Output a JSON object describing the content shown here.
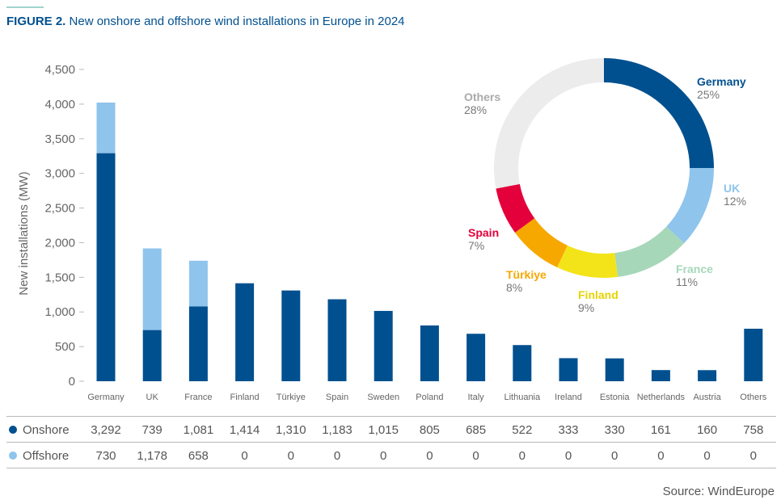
{
  "figure": {
    "label": "FIGURE 2.",
    "title": "New onshore and offshore wind installations in Europe in 2024",
    "source": "Source: WindEurope"
  },
  "chart_data": [
    {
      "type": "bar",
      "stacked": true,
      "categories": [
        "Germany",
        "UK",
        "France",
        "Finland",
        "Türkiye",
        "Spain",
        "Sweden",
        "Poland",
        "Italy",
        "Lithuania",
        "Ireland",
        "Estonia",
        "Netherlands",
        "Austria",
        "Others"
      ],
      "series": [
        {
          "name": "Onshore",
          "color": "#00508f",
          "values": [
            3292,
            739,
            1081,
            1414,
            1310,
            1183,
            1015,
            805,
            685,
            522,
            333,
            330,
            161,
            160,
            758
          ]
        },
        {
          "name": "Offshore",
          "color": "#8fc4ec",
          "values": [
            730,
            1178,
            658,
            0,
            0,
            0,
            0,
            0,
            0,
            0,
            0,
            0,
            0,
            0,
            0
          ]
        }
      ],
      "ylabel": "New installations (MW)",
      "ylim": [
        0,
        4500
      ],
      "yticks": [
        0,
        500,
        1000,
        1500,
        2000,
        2500,
        3000,
        3500,
        4000,
        4500
      ],
      "ytick_labels": [
        "0",
        "500",
        "1,000",
        "1,500",
        "2,000",
        "2,500",
        "3,000",
        "3,500",
        "4,000",
        "4,500"
      ],
      "table": {
        "rows": [
          {
            "name": "Onshore",
            "color": "#00508f",
            "values": [
              "3,292",
              "739",
              "1,081",
              "1,414",
              "1,310",
              "1,183",
              "1,015",
              "805",
              "685",
              "522",
              "333",
              "330",
              "161",
              "160",
              "758"
            ]
          },
          {
            "name": "Offshore",
            "color": "#8fc4ec",
            "values": [
              "730",
              "1,178",
              "658",
              "0",
              "0",
              "0",
              "0",
              "0",
              "0",
              "0",
              "0",
              "0",
              "0",
              "0",
              "0"
            ]
          }
        ]
      },
      "grid": false
    },
    {
      "type": "pie",
      "donut": true,
      "slices": [
        {
          "label": "Germany",
          "pct_label": "25%",
          "value": 25,
          "color": "#00508f"
        },
        {
          "label": "UK",
          "pct_label": "12%",
          "value": 12,
          "color": "#8fc4ec"
        },
        {
          "label": "France",
          "pct_label": "11%",
          "value": 11,
          "color": "#a6d7b9"
        },
        {
          "label": "Finland",
          "pct_label": "9%",
          "value": 9,
          "color": "#f3e41a"
        },
        {
          "label": "Türkiye",
          "pct_label": "8%",
          "value": 8,
          "color": "#f7a800"
        },
        {
          "label": "Spain",
          "pct_label": "7%",
          "value": 7,
          "color": "#e4003a"
        },
        {
          "label": "Others",
          "pct_label": "28%",
          "value": 28,
          "color": "#ececec"
        }
      ]
    }
  ]
}
